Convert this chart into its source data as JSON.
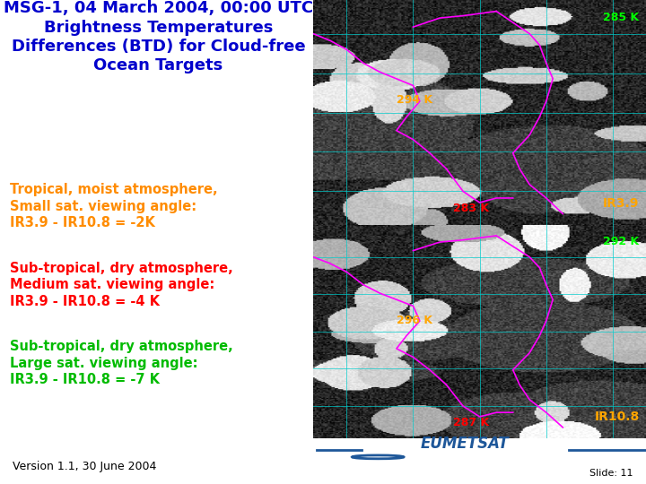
{
  "title_line1": "MSG-1, 04 March 2004, 00:00 UTC",
  "title_line2": "Brightness Temperatures",
  "title_line3": "Differences (BTD) for Cloud-free",
  "title_line4": "Ocean Targets",
  "title_color": "#0000CC",
  "title_fontsize": 13,
  "block1_line1": "Tropical, moist atmosphere,",
  "block1_line2": "Small sat. viewing angle:",
  "block1_line3": "IR3.9 - IR10.8 = -2K",
  "block1_color": "#FF8C00",
  "block2_line1": "Sub-tropical, dry atmosphere,",
  "block2_line2": "Medium sat. viewing angle:",
  "block2_line3": "IR3.9 - IR10.8 = -4 K",
  "block2_color": "#FF0000",
  "block3_line1": "Sub-tropical, dry atmosphere,",
  "block3_line2": "Large sat. viewing angle:",
  "block3_line3": "IR3.9 - IR10.8 = -7 K",
  "block3_color": "#00BB00",
  "bg_color": "#FFFFFF",
  "footer_bar_color": "#1E5799",
  "footer_text": "Version 1.1, 30 June 2004",
  "footer_fontsize": 9,
  "footer_color": "#000000",
  "slide_number": "Slide: 11"
}
